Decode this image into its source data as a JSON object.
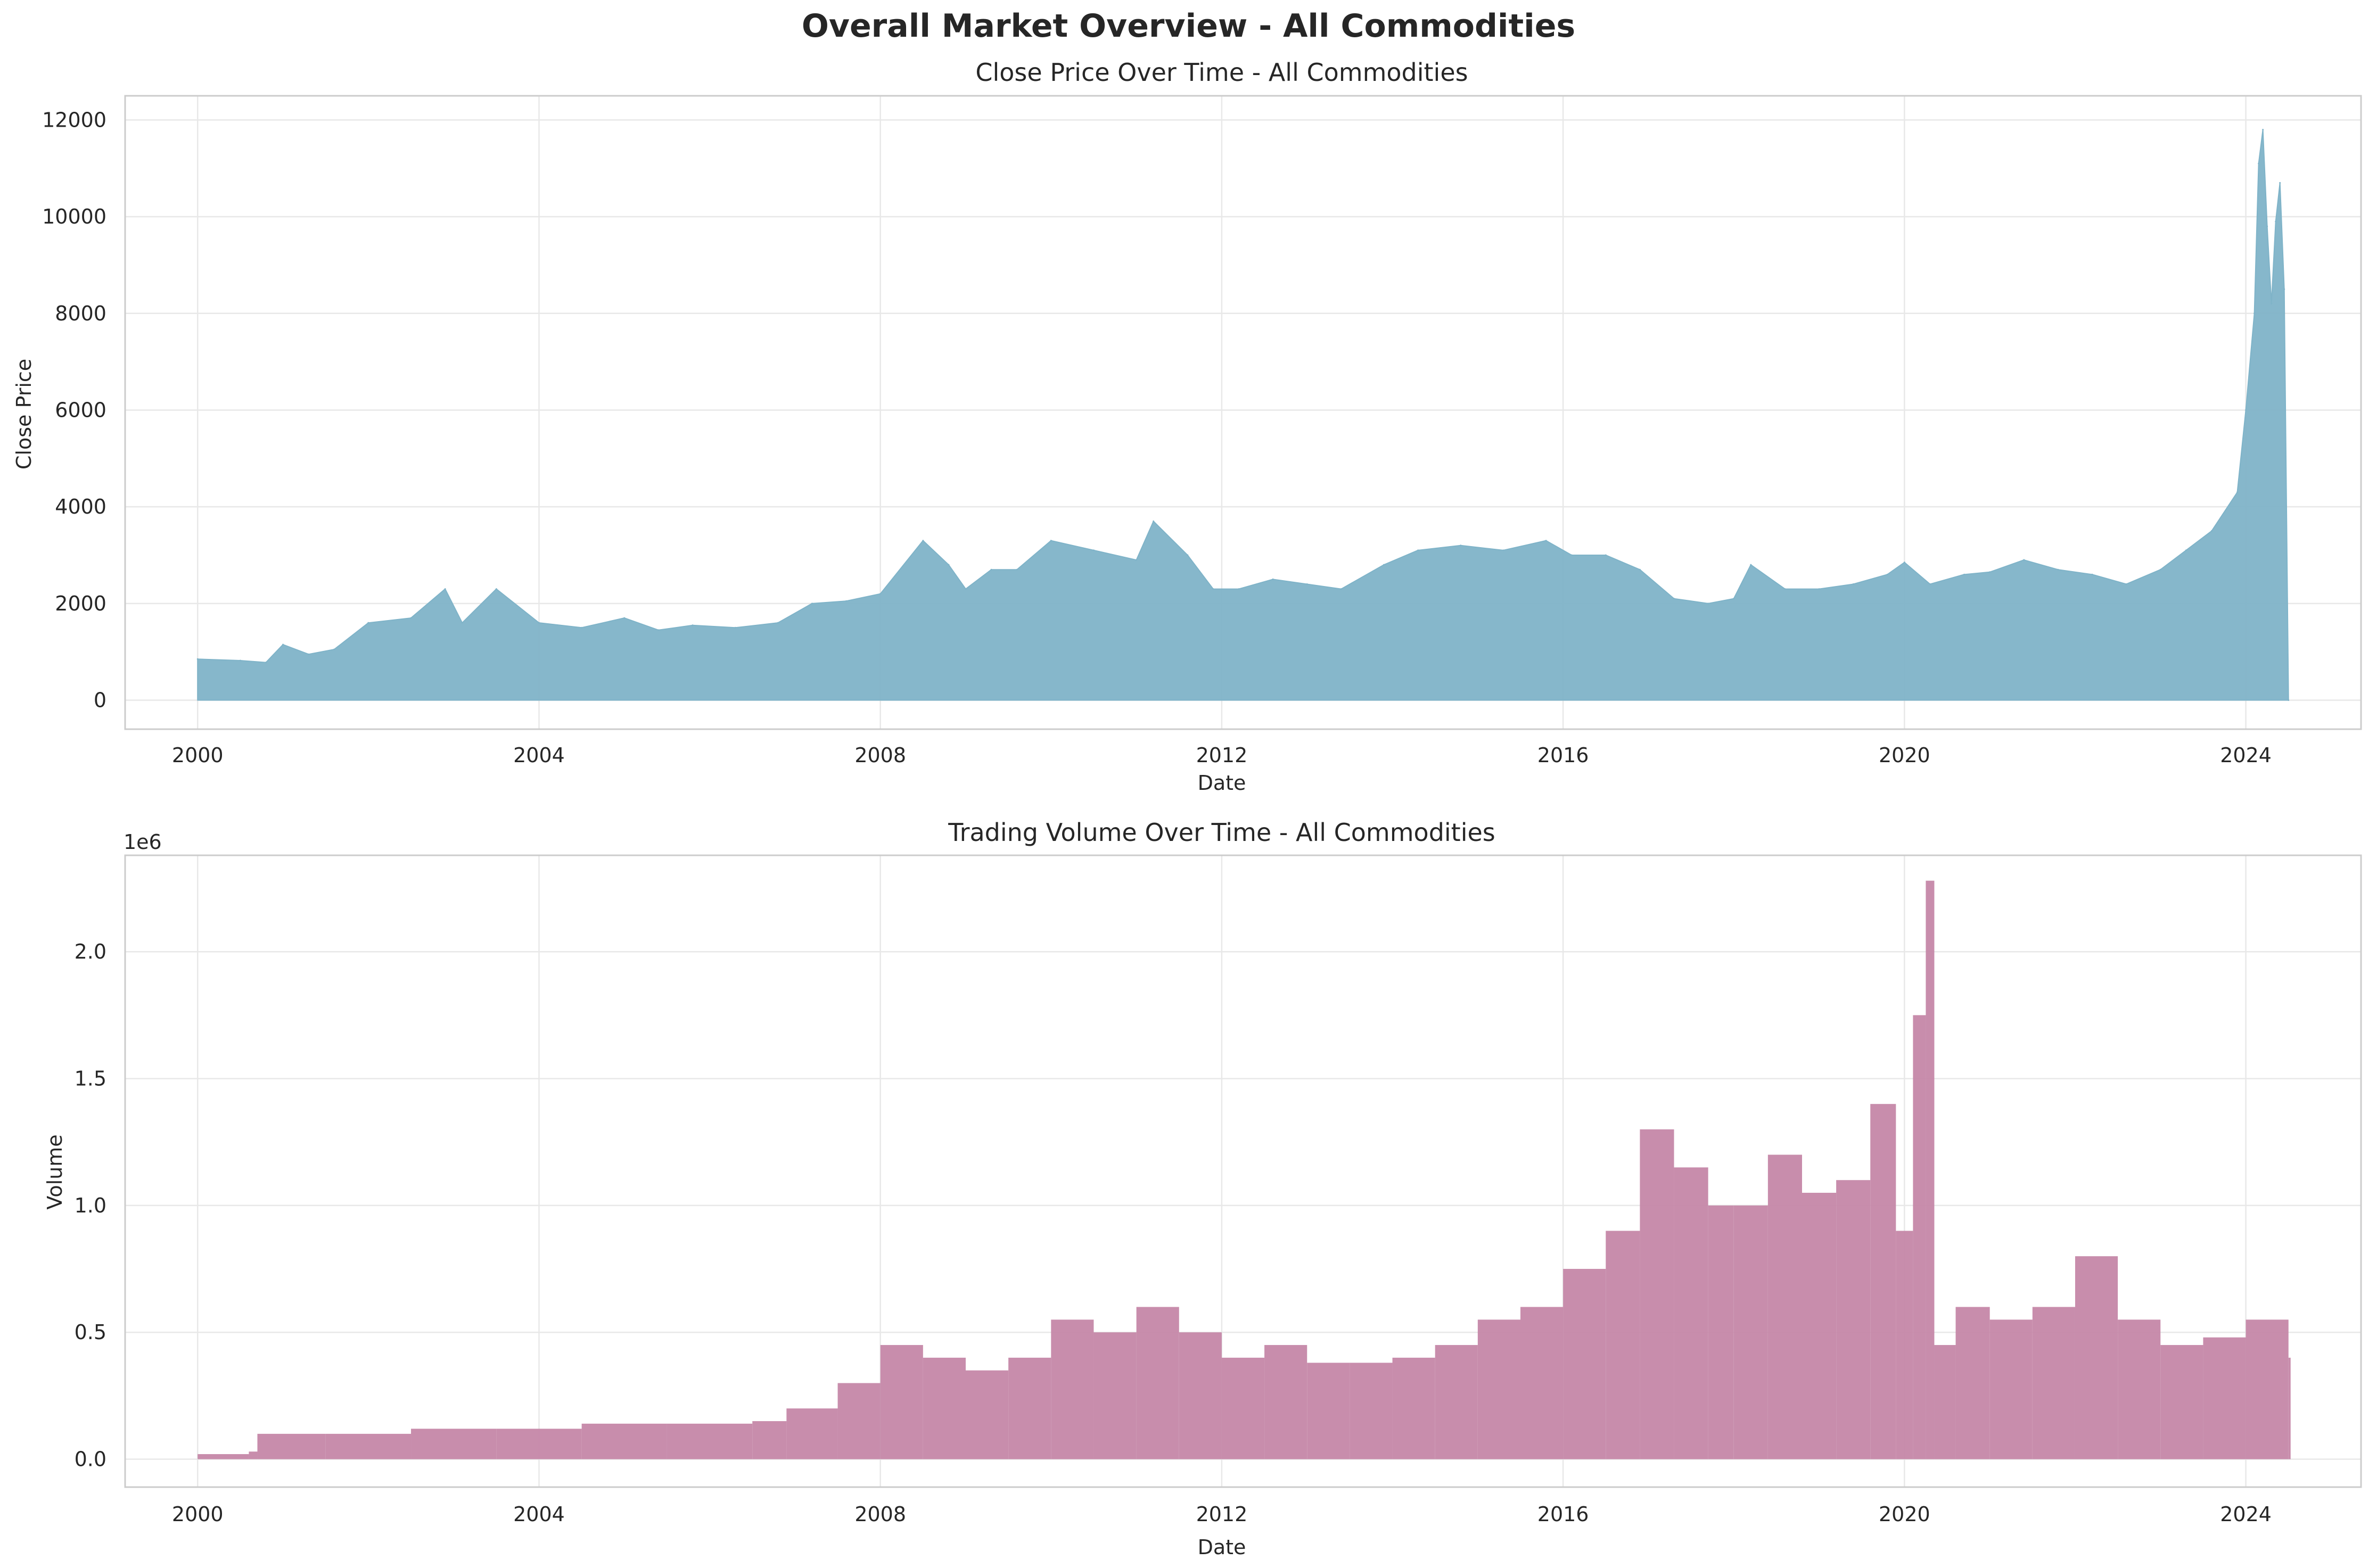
{
  "figure": {
    "suptitle": "Overall Market Overview - All Commodities"
  },
  "chart_data": [
    {
      "type": "area",
      "title": "Close Price Over Time - All Commodities",
      "xlabel": "Date",
      "ylabel": "Close Price",
      "color": "#7fb3c8",
      "xlim": [
        1999.15,
        2025.35
      ],
      "ylim": [
        -600,
        12500
      ],
      "x_ticks": [
        "2000",
        "2004",
        "2008",
        "2012",
        "2016",
        "2020",
        "2024"
      ],
      "y_ticks": [
        "0",
        "2000",
        "4000",
        "6000",
        "8000",
        "10000",
        "12000"
      ],
      "grid": true,
      "x": [
        2000.0,
        2000.5,
        2000.8,
        2001.0,
        2001.3,
        2001.6,
        2002.0,
        2002.5,
        2002.9,
        2003.1,
        2003.5,
        2004.0,
        2004.5,
        2005.0,
        2005.4,
        2005.8,
        2006.3,
        2006.8,
        2007.2,
        2007.6,
        2008.0,
        2008.5,
        2008.8,
        2009.0,
        2009.3,
        2009.6,
        2010.0,
        2010.5,
        2011.0,
        2011.2,
        2011.6,
        2011.9,
        2012.2,
        2012.6,
        2013.0,
        2013.4,
        2013.9,
        2014.3,
        2014.8,
        2015.3,
        2015.8,
        2016.1,
        2016.5,
        2016.9,
        2017.3,
        2017.7,
        2018.0,
        2018.2,
        2018.6,
        2019.0,
        2019.4,
        2019.8,
        2020.0,
        2020.3,
        2020.7,
        2021.0,
        2021.4,
        2021.8,
        2022.2,
        2022.6,
        2023.0,
        2023.3,
        2023.6,
        2023.9,
        2024.0,
        2024.1,
        2024.15,
        2024.2,
        2024.25,
        2024.3,
        2024.35,
        2024.4,
        2024.45,
        2024.5
      ],
      "y": [
        850,
        820,
        780,
        1150,
        950,
        1050,
        1600,
        1700,
        2300,
        1600,
        2300,
        1600,
        1500,
        1700,
        1450,
        1550,
        1500,
        1600,
        2000,
        2050,
        2200,
        3300,
        2800,
        2300,
        2700,
        2700,
        3300,
        3100,
        2900,
        3700,
        3000,
        2300,
        2300,
        2500,
        2400,
        2300,
        2800,
        3100,
        3200,
        3100,
        3300,
        3000,
        3000,
        2700,
        2100,
        2000,
        2100,
        2800,
        2300,
        2300,
        2400,
        2600,
        2850,
        2400,
        2600,
        2650,
        2900,
        2700,
        2600,
        2400,
        2700,
        3100,
        3500,
        4300,
        6000,
        8000,
        11100,
        11800,
        9800,
        8200,
        9900,
        10700,
        8500,
        0
      ]
    },
    {
      "type": "bar",
      "title": "Trading Volume Over Time - All Commodities",
      "xlabel": "Date",
      "ylabel": "Volume",
      "offset_label": "1e6",
      "color": "#c587a8",
      "xlim": [
        1999.15,
        2025.35
      ],
      "ylim": [
        -0.11,
        2.38
      ],
      "x_ticks": [
        "2000",
        "2004",
        "2008",
        "2012",
        "2016",
        "2020",
        "2024"
      ],
      "y_ticks": [
        "0.0",
        "0.5",
        "1.0",
        "1.5",
        "2.0"
      ],
      "grid": true,
      "x": [
        2000.0,
        2000.6,
        2000.7,
        2001.5,
        2002.5,
        2003.5,
        2004.5,
        2005.5,
        2006.5,
        2006.9,
        2007.5,
        2008.0,
        2008.5,
        2009.0,
        2009.5,
        2010.0,
        2010.5,
        2011.0,
        2011.5,
        2012.0,
        2012.5,
        2013.0,
        2013.5,
        2014.0,
        2014.5,
        2015.0,
        2015.5,
        2016.0,
        2016.5,
        2016.9,
        2017.3,
        2017.7,
        2018.0,
        2018.4,
        2018.8,
        2019.2,
        2019.6,
        2019.9,
        2020.1,
        2020.25,
        2020.35,
        2020.6,
        2021.0,
        2021.5,
        2022.0,
        2022.5,
        2023.0,
        2023.5,
        2024.0,
        2024.5
      ],
      "y": [
        0.02,
        0.03,
        0.1,
        0.1,
        0.12,
        0.12,
        0.14,
        0.14,
        0.15,
        0.2,
        0.3,
        0.45,
        0.4,
        0.35,
        0.4,
        0.55,
        0.5,
        0.6,
        0.5,
        0.4,
        0.45,
        0.38,
        0.38,
        0.4,
        0.45,
        0.55,
        0.6,
        0.75,
        0.9,
        1.3,
        1.15,
        1.0,
        1.0,
        1.2,
        1.05,
        1.1,
        1.4,
        0.9,
        1.75,
        2.28,
        0.45,
        0.6,
        0.55,
        0.6,
        0.8,
        0.55,
        0.45,
        0.48,
        0.55,
        0.4
      ]
    }
  ]
}
